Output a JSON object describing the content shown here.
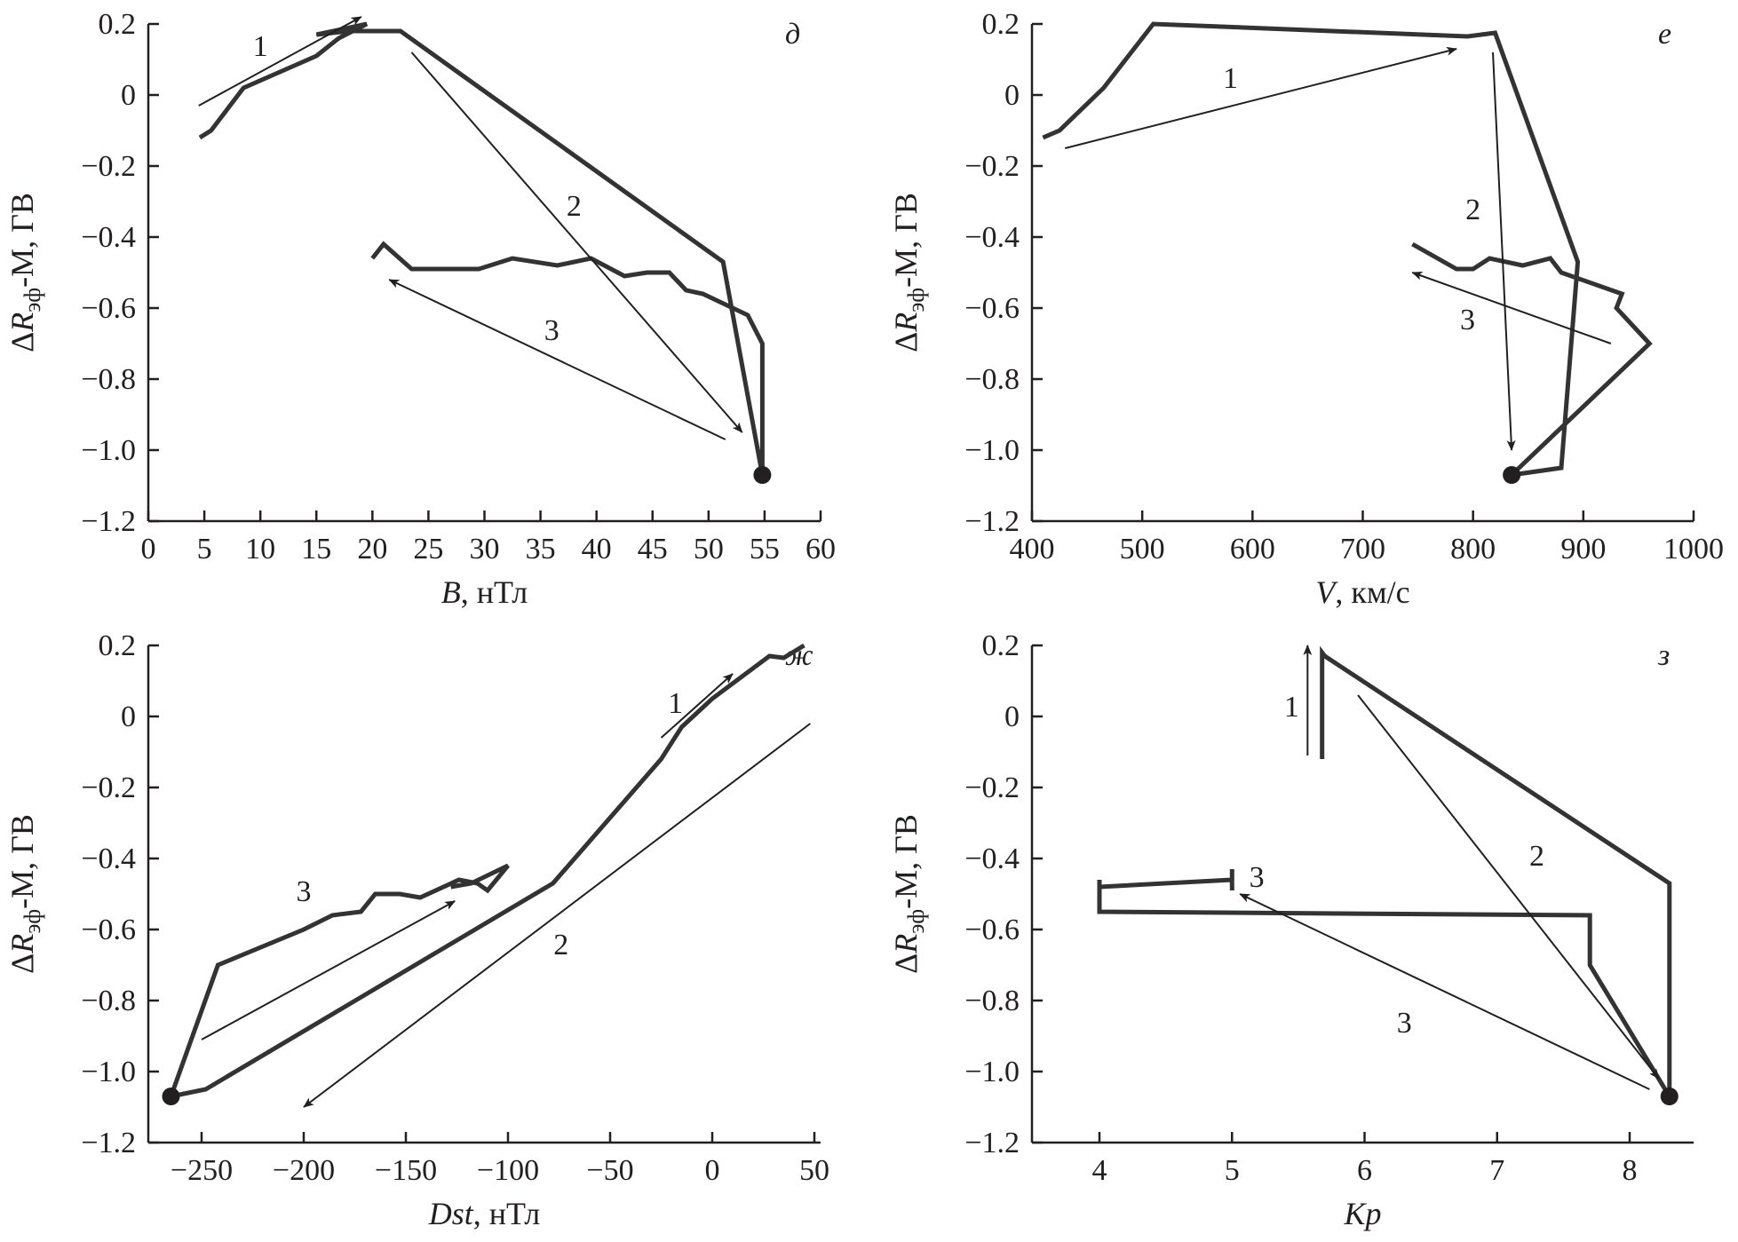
{
  "chart_data": [
    {
      "type": "line",
      "panel_letter": "д",
      "xlabel_var": "B",
      "xlabel_unit": ", нТл",
      "ylabel_main": "ΔR",
      "ylabel_sub": "эф",
      "ylabel_rest": "-M, ГВ",
      "xlim": [
        0,
        60
      ],
      "ylim": [
        -1.2,
        0.2
      ],
      "xticks": [
        0,
        5,
        10,
        15,
        20,
        25,
        30,
        35,
        40,
        45,
        50,
        55,
        60
      ],
      "xtick_labels": [
        "0",
        "5",
        "10",
        "15",
        "20",
        "25",
        "30",
        "35",
        "40",
        "45",
        "50",
        "55",
        "60"
      ],
      "yticks": [
        0.2,
        0,
        -0.2,
        -0.4,
        -0.6,
        -0.8,
        -1.0,
        -1.2
      ],
      "ytick_labels": [
        "0.2",
        "0",
        "−0.2",
        "−0.4",
        "−0.6",
        "−0.8",
        "−1.0",
        "−1.2"
      ],
      "series": [
        {
          "name": "trajectory",
          "x": [
            4.6,
            5.6,
            8.5,
            15,
            17,
            19.5,
            15,
            18,
            22.5,
            51.3,
            54.8,
            54.8,
            53.5,
            51.5,
            49.5,
            48,
            46.5,
            44.5,
            42.5,
            39.5,
            36.5,
            32.5,
            29.5,
            23.5,
            21,
            20
          ],
          "y": [
            -0.12,
            -0.1,
            0.02,
            0.11,
            0.16,
            0.2,
            0.17,
            0.18,
            0.18,
            -0.47,
            -1.07,
            -0.7,
            -0.62,
            -0.59,
            -0.56,
            -0.55,
            -0.5,
            -0.5,
            -0.51,
            -0.46,
            -0.48,
            -0.46,
            -0.49,
            -0.49,
            -0.42,
            -0.46
          ]
        }
      ],
      "marker": {
        "x": 54.8,
        "y": -1.07
      },
      "arrows": [
        {
          "label": "1",
          "from": [
            4.5,
            -0.03
          ],
          "to": [
            19,
            0.22
          ],
          "label_at": [
            10,
            0.14
          ]
        },
        {
          "label": "2",
          "from": [
            23.5,
            0.12
          ],
          "to": [
            53,
            -0.95
          ],
          "label_at": [
            38,
            -0.31
          ]
        },
        {
          "label": "3",
          "from": [
            51.5,
            -0.97
          ],
          "to": [
            21.5,
            -0.52
          ],
          "label_at": [
            36,
            -0.66
          ]
        }
      ]
    },
    {
      "type": "line",
      "panel_letter": "е",
      "xlabel_var": "V",
      "xlabel_unit": ", км/с",
      "ylabel_main": "ΔR",
      "ylabel_sub": "эф",
      "ylabel_rest": "-M, ГВ",
      "xlim": [
        400,
        1000
      ],
      "ylim": [
        -1.2,
        0.2
      ],
      "xticks": [
        400,
        500,
        600,
        700,
        800,
        900,
        1000
      ],
      "xtick_labels": [
        "400",
        "500",
        "600",
        "700",
        "800",
        "900",
        "1000"
      ],
      "yticks": [
        0.2,
        0,
        -0.2,
        -0.4,
        -0.6,
        -0.8,
        -1.0,
        -1.2
      ],
      "ytick_labels": [
        "0.2",
        "0",
        "−0.2",
        "−0.4",
        "−0.6",
        "−0.8",
        "−1.0",
        "−1.2"
      ],
      "series": [
        {
          "name": "trajectory",
          "x": [
            410,
            425,
            465,
            510,
            795,
            820,
            895,
            880,
            835,
            960,
            930,
            935,
            880,
            870,
            845,
            815,
            800,
            785,
            745
          ],
          "y": [
            -0.12,
            -0.1,
            0.02,
            0.2,
            0.165,
            0.175,
            -0.47,
            -1.05,
            -1.07,
            -0.7,
            -0.6,
            -0.56,
            -0.5,
            -0.46,
            -0.48,
            -0.46,
            -0.49,
            -0.49,
            -0.42
          ]
        }
      ],
      "marker": {
        "x": 835,
        "y": -1.07
      },
      "arrows": [
        {
          "label": "1",
          "from": [
            430,
            -0.15
          ],
          "to": [
            785,
            0.13
          ],
          "label_at": [
            580,
            0.05
          ]
        },
        {
          "label": "2",
          "from": [
            818,
            0.12
          ],
          "to": [
            835,
            -1.0
          ],
          "label_at": [
            800,
            -0.32
          ]
        },
        {
          "label": "3",
          "from": [
            925,
            -0.7
          ],
          "to": [
            745,
            -0.5
          ],
          "label_at": [
            795,
            -0.63
          ]
        }
      ]
    },
    {
      "type": "line",
      "panel_letter": "ж",
      "xlabel_var": "Dst",
      "xlabel_unit": ", нТл",
      "ylabel_main": "ΔR",
      "ylabel_sub": "эф",
      "ylabel_rest": "-M, ГВ",
      "xlim": [
        -270,
        50
      ],
      "ylim": [
        -1.2,
        0.2
      ],
      "xticks": [
        -250,
        -200,
        -150,
        -100,
        -50,
        0,
        50
      ],
      "xtick_labels": [
        "−250",
        "−200",
        "−150",
        "−100",
        "−50",
        "0",
        "50"
      ],
      "yticks": [
        0.2,
        0,
        -0.2,
        -0.4,
        -0.6,
        -0.8,
        -1.0,
        -1.2
      ],
      "ytick_labels": [
        "0.2",
        "0",
        "−0.2",
        "−0.4",
        "−0.6",
        "−0.8",
        "−1.0",
        "−1.2"
      ],
      "series": [
        {
          "name": "trajectory-main",
          "x": [
            -265,
            -248,
            -78,
            -25,
            -15,
            0,
            28,
            35,
            45
          ],
          "y": [
            -1.07,
            -1.05,
            -0.47,
            -0.12,
            -0.03,
            0.05,
            0.17,
            0.165,
            0.2
          ]
        },
        {
          "name": "trajectory-recovery",
          "x": [
            -265,
            -242,
            -200,
            -186,
            -172,
            -165,
            -153,
            -143,
            -124,
            -115,
            -110,
            -100,
            -118,
            -128
          ],
          "y": [
            -1.07,
            -0.7,
            -0.6,
            -0.56,
            -0.55,
            -0.5,
            -0.5,
            -0.51,
            -0.46,
            -0.47,
            -0.49,
            -0.42,
            -0.47,
            -0.48
          ]
        }
      ],
      "marker": {
        "x": -265,
        "y": -1.07
      },
      "arrows": [
        {
          "label": "1",
          "from": [
            -25,
            -0.06
          ],
          "to": [
            10,
            0.12
          ],
          "label_at": [
            -18,
            0.04
          ]
        },
        {
          "label": "2",
          "from": [
            48,
            -0.02
          ],
          "to": [
            -200,
            -1.1
          ],
          "label_at": [
            -74,
            -0.64
          ]
        },
        {
          "label": "3",
          "from": [
            -250,
            -0.91
          ],
          "to": [
            -126,
            -0.52
          ],
          "label_at": [
            -200,
            -0.49
          ]
        }
      ]
    },
    {
      "type": "line",
      "panel_letter": "з",
      "xlabel_var": "Kp",
      "xlabel_unit": "",
      "ylabel_main": "ΔR",
      "ylabel_sub": "эф",
      "ylabel_rest": "-M, ГВ",
      "xlim": [
        3.5,
        8.6
      ],
      "ylim": [
        -1.2,
        0.2
      ],
      "xticks": [
        4,
        5,
        6,
        7,
        8
      ],
      "xtick_labels": [
        "4",
        "5",
        "6",
        "7",
        "8"
      ],
      "yticks": [
        0.2,
        0,
        -0.2,
        -0.4,
        -0.6,
        -0.8,
        -1.0,
        -1.2
      ],
      "ytick_labels": [
        "0.2",
        "0",
        "−0.2",
        "−0.4",
        "−0.6",
        "−0.8",
        "−1.0",
        "−1.2"
      ],
      "series": [
        {
          "name": "trajectory",
          "x": [
            5.68,
            5.68,
            5.7,
            8.3,
            8.3,
            7.7,
            7.7,
            4.0,
            4.0,
            4.0,
            5.0,
            5.0,
            5.0
          ],
          "y": [
            -0.12,
            0.18,
            0.17,
            -0.47,
            -1.07,
            -0.7,
            -0.56,
            -0.55,
            -0.46,
            -0.48,
            -0.46,
            -0.43,
            -0.49
          ]
        }
      ],
      "marker": {
        "x": 8.3,
        "y": -1.07
      },
      "arrows": [
        {
          "label": "1",
          "from": [
            5.57,
            -0.11
          ],
          "to": [
            5.57,
            0.2
          ],
          "label_at": [
            5.45,
            0.03
          ]
        },
        {
          "label": "2",
          "from": [
            5.95,
            0.06
          ],
          "to": [
            8.22,
            -1.02
          ],
          "label_at": [
            7.3,
            -0.39
          ]
        },
        {
          "label": "3",
          "from": [
            8.15,
            -1.05
          ],
          "to": [
            5.06,
            -0.5
          ],
          "label_at": [
            6.3,
            -0.86
          ]
        }
      ],
      "extra_labels": [
        {
          "text": "3",
          "at": [
            5.13,
            -0.45
          ]
        }
      ]
    }
  ]
}
